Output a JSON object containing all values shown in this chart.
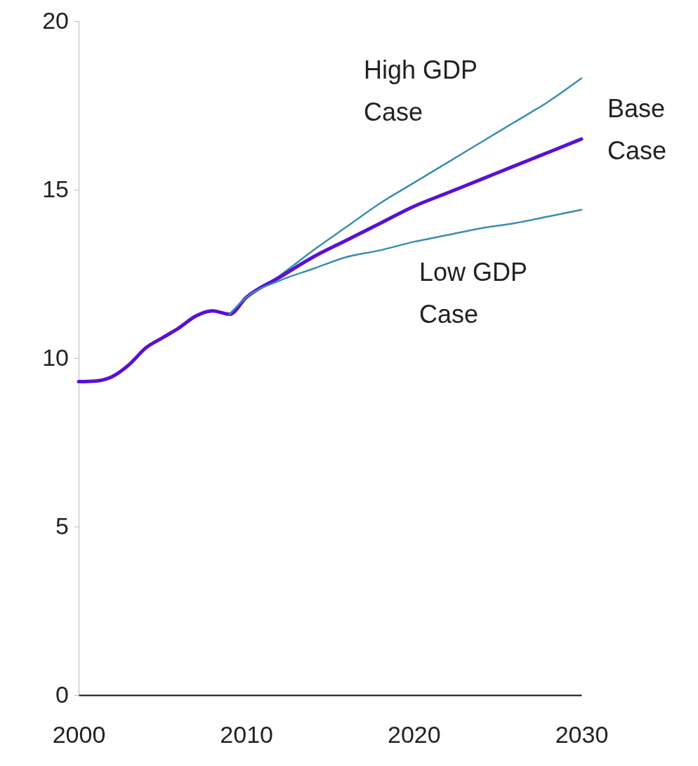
{
  "chart_data": {
    "type": "line",
    "xlim": [
      2000,
      2030
    ],
    "xticks": [
      2000,
      2010,
      2020,
      2030
    ],
    "ylim": [
      0,
      20
    ],
    "yticks": [
      0,
      5,
      10,
      15,
      20
    ],
    "grid": false,
    "marker": "none",
    "line_style": "solid",
    "series": [
      {
        "name": "High GDP Case",
        "color": "#3a8db0",
        "x": [
          2009,
          2010,
          2012,
          2014,
          2016,
          2018,
          2020,
          2022,
          2024,
          2026,
          2028,
          2030
        ],
        "values": [
          11.3,
          11.8,
          12.45,
          13.2,
          13.9,
          14.6,
          15.2,
          15.8,
          16.4,
          17.0,
          17.6,
          18.3
        ]
      },
      {
        "name": "Base Case",
        "color": "#5a10d4",
        "x": [
          2000,
          2001,
          2002,
          2003,
          2004,
          2005,
          2006,
          2007,
          2008,
          2009,
          2010,
          2012,
          2014,
          2016,
          2018,
          2020,
          2022,
          2024,
          2026,
          2028,
          2030
        ],
        "values": [
          9.3,
          9.32,
          9.45,
          9.8,
          10.3,
          10.6,
          10.9,
          11.25,
          11.4,
          11.3,
          11.8,
          12.4,
          13.0,
          13.5,
          14.0,
          14.5,
          14.9,
          15.3,
          15.7,
          16.1,
          16.5
        ]
      },
      {
        "name": "Low GDP Case",
        "color": "#3a8db0",
        "x": [
          2009,
          2010,
          2012,
          2014,
          2016,
          2018,
          2020,
          2022,
          2024,
          2026,
          2028,
          2030
        ],
        "values": [
          11.3,
          11.8,
          12.3,
          12.65,
          13.0,
          13.2,
          13.45,
          13.65,
          13.85,
          14.0,
          14.2,
          14.4
        ]
      }
    ]
  }
}
